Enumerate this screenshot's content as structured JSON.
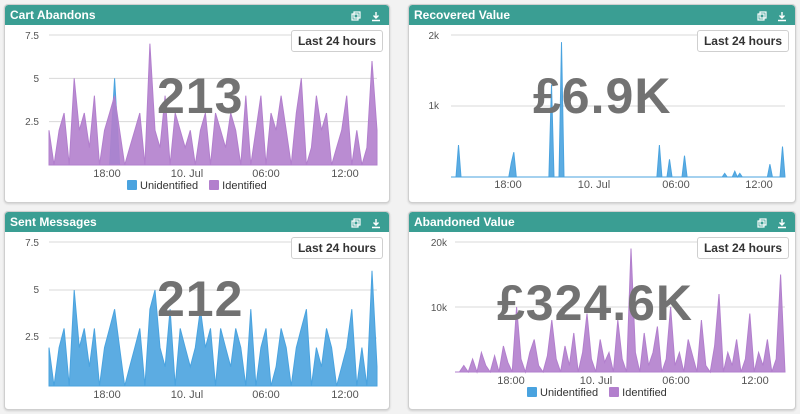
{
  "colors": {
    "header": "#3a9e93",
    "unidentified": "#4aa3df",
    "identified": "#b27fcd"
  },
  "icons": {
    "expand": "expand-icon",
    "download": "download-icon"
  },
  "range_label": "Last 24 hours",
  "panels": [
    {
      "title": "Cart Abandons",
      "big_value": "213",
      "legend": [
        "Unidentified",
        "Identified"
      ],
      "x_ticks": [
        "18:00",
        "10. Jul",
        "06:00",
        "12:00"
      ],
      "y_ticks": [
        "7.5",
        "5",
        "2.5"
      ]
    },
    {
      "title": "Recovered Value",
      "big_value": "£6.9K",
      "legend": [],
      "x_ticks": [
        "18:00",
        "10. Jul",
        "06:00",
        "12:00"
      ],
      "y_ticks": [
        "2k",
        "1k"
      ]
    },
    {
      "title": "Sent Messages",
      "big_value": "212",
      "legend": [],
      "x_ticks": [
        "18:00",
        "10. Jul",
        "06:00",
        "12:00"
      ],
      "y_ticks": [
        "7.5",
        "5",
        "2.5"
      ]
    },
    {
      "title": "Abandoned Value",
      "big_value": "£324.6K",
      "legend": [
        "Unidentified",
        "Identified"
      ],
      "x_ticks": [
        "18:00",
        "10. Jul",
        "06:00",
        "12:00"
      ],
      "y_ticks": [
        "20k",
        "10k"
      ]
    }
  ],
  "chart_data": [
    {
      "type": "area",
      "ylim": [
        0,
        7.5
      ],
      "series": [
        {
          "name": "Unidentified",
          "color": "#4aa3df",
          "values": [
            0,
            0,
            0,
            0,
            0,
            0,
            0,
            0,
            0,
            0,
            0,
            0,
            0,
            5,
            0,
            0,
            0,
            0,
            0,
            0,
            0,
            0,
            0,
            0,
            0,
            0,
            0,
            0,
            0,
            0,
            0,
            0,
            0,
            0,
            0,
            0,
            0,
            0,
            0,
            0,
            0,
            0,
            0,
            0,
            0,
            0,
            0,
            0,
            0,
            0,
            0,
            0,
            0,
            0,
            0,
            0,
            0,
            0,
            0,
            0,
            0,
            0,
            0,
            0,
            0,
            0
          ]
        },
        {
          "name": "Identified",
          "color": "#b27fcd",
          "values": [
            2,
            0,
            2,
            3,
            0,
            5,
            2,
            3,
            1,
            4,
            0,
            2,
            3,
            4,
            2,
            0,
            1,
            2,
            3,
            0,
            7,
            2,
            1,
            4,
            0,
            3,
            2,
            1,
            2,
            0,
            2,
            3,
            0,
            3,
            2,
            1,
            3,
            2,
            0,
            4,
            0,
            2,
            4,
            0,
            3,
            2,
            4,
            2,
            0,
            3,
            5,
            0,
            1,
            4,
            2,
            3,
            0,
            1,
            2,
            4,
            0,
            2,
            0,
            1,
            6,
            2
          ]
        }
      ]
    },
    {
      "type": "area",
      "ylim": [
        0,
        2000
      ],
      "series": [
        {
          "name": "Unidentified",
          "color": "#4aa3df",
          "values": [
            0,
            0,
            0,
            450,
            0,
            0,
            0,
            0,
            0,
            0,
            0,
            0,
            0,
            0,
            0,
            0,
            0,
            0,
            0,
            0,
            0,
            0,
            0,
            0,
            200,
            350,
            0,
            0,
            0,
            0,
            0,
            0,
            0,
            0,
            0,
            0,
            0,
            0,
            0,
            0,
            1300,
            0,
            0,
            0,
            1900,
            0,
            0,
            0,
            0,
            0,
            0,
            0,
            0,
            0,
            0,
            0,
            0,
            0,
            0,
            0,
            0,
            0,
            0,
            0,
            0,
            0,
            0,
            0,
            0,
            0,
            0,
            0,
            0,
            0,
            0,
            0,
            0,
            0,
            0,
            0,
            0,
            0,
            0,
            450,
            0,
            0,
            0,
            250,
            0,
            0,
            0,
            0,
            0,
            300,
            0,
            0,
            0,
            0,
            0,
            0,
            0,
            0,
            0,
            0,
            0,
            0,
            0,
            0,
            0,
            50,
            0,
            0,
            0,
            80,
            0,
            50,
            0,
            0,
            0,
            0,
            0,
            0,
            0,
            0,
            0,
            0,
            0,
            180,
            0,
            0,
            0,
            0,
            430,
            0
          ]
        }
      ]
    },
    {
      "type": "area",
      "ylim": [
        0,
        7.5
      ],
      "series": [
        {
          "name": "Unidentified",
          "color": "#4aa3df",
          "values": [
            2,
            0,
            2,
            3,
            0,
            5,
            2,
            3,
            1,
            3,
            0,
            2,
            3,
            4,
            2,
            0,
            1,
            2,
            3,
            0,
            4,
            5,
            2,
            1,
            4,
            0,
            3,
            2,
            1,
            2,
            4,
            2,
            3,
            0,
            3,
            2,
            1,
            3,
            2,
            0,
            4,
            0,
            2,
            3,
            0,
            1,
            3,
            2,
            0,
            2,
            3,
            4,
            0,
            2,
            1,
            3,
            2,
            0,
            1,
            2,
            4,
            0,
            2,
            0,
            6,
            1
          ]
        }
      ]
    },
    {
      "type": "area",
      "ylim": [
        0,
        20000
      ],
      "series": [
        {
          "name": "Unidentified",
          "color": "#4aa3df",
          "values": []
        },
        {
          "name": "Identified",
          "color": "#b27fcd",
          "values": [
            0,
            0,
            1000,
            0,
            2000,
            0,
            3000,
            1000,
            0,
            2500,
            0,
            4000,
            1500,
            0,
            10000,
            2000,
            0,
            3000,
            5000,
            1000,
            0,
            2500,
            8000,
            2000,
            0,
            4000,
            1000,
            6000,
            0,
            3000,
            9000,
            2000,
            0,
            5000,
            1500,
            3000,
            0,
            8000,
            2000,
            0,
            19000,
            3000,
            0,
            6000,
            1000,
            3000,
            7000,
            0,
            2000,
            10000,
            1000,
            3000,
            0,
            5000,
            2500,
            0,
            8000,
            1000,
            0,
            4000,
            12000,
            0,
            3000,
            1000,
            5000,
            0,
            2000,
            9000,
            0,
            3000,
            1000,
            5000,
            0,
            2000,
            15000,
            0
          ]
        }
      ]
    }
  ]
}
